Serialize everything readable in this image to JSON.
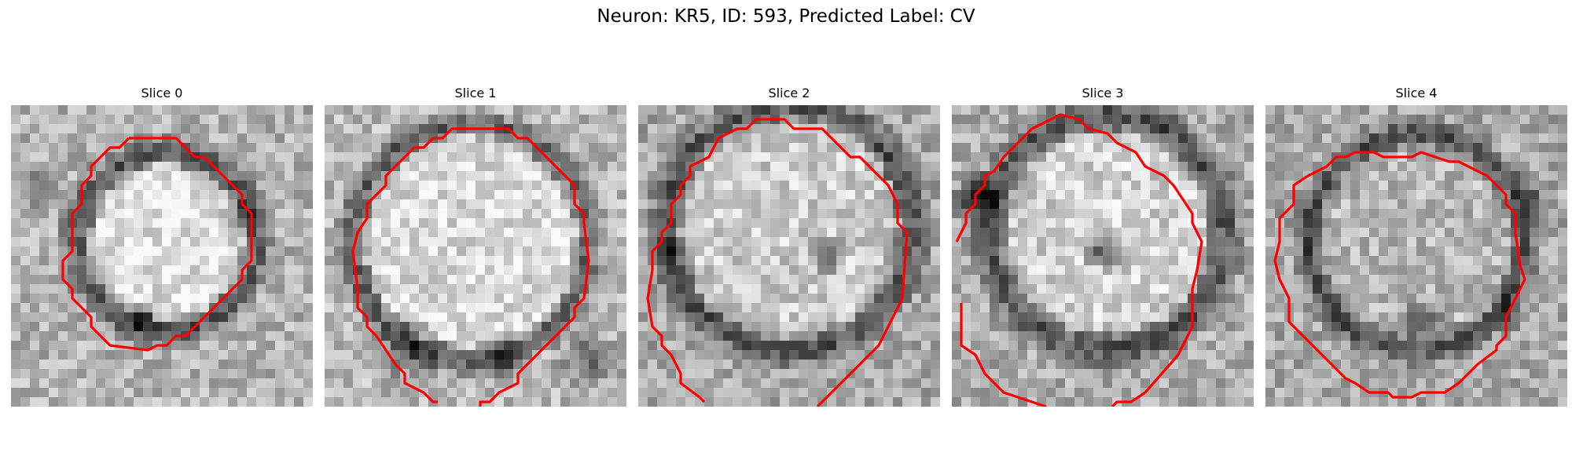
{
  "figure": {
    "title": "Neuron: KR5, ID: 593, Predicted Label: CV",
    "contour_color": "#ff0000",
    "panels": [
      {
        "title": "Slice 0",
        "membrane": {
          "shape": "ring",
          "cx": 16.5,
          "cy": 14.5,
          "r": 9.5,
          "w": 2.2,
          "open": false
        },
        "dark_spots": [
          {
            "x": 14,
            "y": 23,
            "r": 1.6,
            "d": 0.35
          },
          {
            "x": 3,
            "y": 9,
            "r": 1.5,
            "d": 0.25
          },
          {
            "x": 24,
            "y": 12,
            "r": 1.6,
            "d": 0.3
          }
        ],
        "bright": 0.88,
        "bg": 0.7
      },
      {
        "title": "Slice 1",
        "membrane": {
          "shape": "ring",
          "cx": 15.5,
          "cy": 14.5,
          "r": 12.5,
          "w": 2.0,
          "open": true
        },
        "dark_spots": [
          {
            "x": 9,
            "y": 26,
            "r": 2.5,
            "d": 0.35
          },
          {
            "x": 19,
            "y": 27,
            "r": 2.2,
            "d": 0.3
          },
          {
            "x": 28,
            "y": 27,
            "r": 2.5,
            "d": 0.3
          }
        ],
        "bright": 0.86,
        "bg": 0.72
      },
      {
        "title": "Slice 2",
        "membrane": {
          "shape": "ring",
          "cx": 16,
          "cy": 13,
          "r": 13,
          "w": 2.4,
          "open": true
        },
        "dark_spots": [
          {
            "x": 20,
            "y": 16,
            "r": 1.5,
            "d": 0.55
          },
          {
            "x": 3,
            "y": 16,
            "r": 1.4,
            "d": 0.3
          }
        ],
        "bright": 0.8,
        "bg": 0.66
      },
      {
        "title": "Slice 3",
        "membrane": {
          "shape": "ring",
          "cx": 16.5,
          "cy": 13.5,
          "r": 12.5,
          "w": 2.6,
          "open": true
        },
        "dark_spots": [
          {
            "x": 3,
            "y": 10,
            "r": 2.0,
            "d": 0.55
          },
          {
            "x": 16,
            "y": 15,
            "r": 1.8,
            "d": 0.45
          }
        ],
        "bright": 0.82,
        "bg": 0.68
      },
      {
        "title": "Slice 4",
        "membrane": {
          "shape": "ring",
          "cx": 16,
          "cy": 14.5,
          "r": 11.5,
          "w": 2.0,
          "open": false
        },
        "dark_spots": [
          {
            "x": 17,
            "y": 23,
            "r": 2.0,
            "d": 0.35
          },
          {
            "x": 28,
            "y": 10,
            "r": 1.2,
            "d": 0.4
          },
          {
            "x": 26,
            "y": 22,
            "r": 1.2,
            "d": 0.35
          }
        ],
        "bright": 0.72,
        "bg": 0.66
      }
    ]
  }
}
